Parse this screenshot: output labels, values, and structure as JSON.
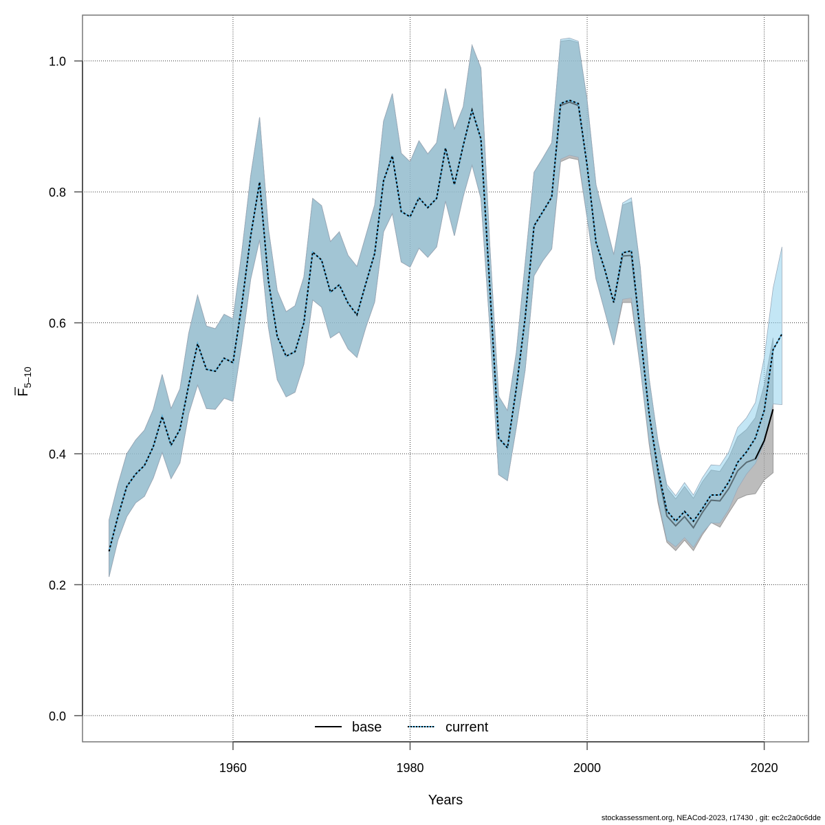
{
  "chart_data": {
    "type": "line",
    "title": "",
    "xlabel": "Years",
    "ylabel_main": "F",
    "ylabel_subscript": "5–10",
    "xlim": [
      1943,
      2025
    ],
    "ylim": [
      -0.04,
      1.07
    ],
    "x_ticks": [
      1960,
      1980,
      2000,
      2020
    ],
    "x_tick_labels": [
      "1960",
      "1980",
      "2000",
      "2020"
    ],
    "y_ticks": [
      0.0,
      0.2,
      0.4,
      0.6,
      0.8,
      1.0
    ],
    "y_tick_labels": [
      "0.0",
      "0.2",
      "0.4",
      "0.6",
      "0.8",
      "1.0"
    ],
    "grid": true,
    "legend_position": "bottom-center",
    "series": [
      {
        "name": "base",
        "line_style": "solid",
        "line_color": "#000000",
        "band_color": "#a0a0a0",
        "years": [
          1946,
          1947,
          1948,
          1949,
          1950,
          1951,
          1952,
          1953,
          1954,
          1955,
          1956,
          1957,
          1958,
          1959,
          1960,
          1961,
          1962,
          1963,
          1964,
          1965,
          1966,
          1967,
          1968,
          1969,
          1970,
          1971,
          1972,
          1973,
          1974,
          1975,
          1976,
          1977,
          1978,
          1979,
          1980,
          1981,
          1982,
          1983,
          1984,
          1985,
          1986,
          1987,
          1988,
          1989,
          1990,
          1991,
          1992,
          1993,
          1994,
          1995,
          1996,
          1997,
          1998,
          1999,
          2000,
          2001,
          2002,
          2003,
          2004,
          2005,
          2006,
          2007,
          2008,
          2009,
          2010,
          2011,
          2012,
          2013,
          2014,
          2015,
          2016,
          2017,
          2018,
          2019,
          2020,
          2021
        ],
        "values": [
          0.251,
          0.304,
          0.35,
          0.369,
          0.382,
          0.411,
          0.457,
          0.413,
          0.437,
          0.505,
          0.568,
          0.529,
          0.526,
          0.546,
          0.539,
          0.628,
          0.733,
          0.815,
          0.664,
          0.579,
          0.549,
          0.556,
          0.6,
          0.708,
          0.696,
          0.647,
          0.658,
          0.63,
          0.612,
          0.66,
          0.706,
          0.817,
          0.855,
          0.77,
          0.762,
          0.791,
          0.776,
          0.79,
          0.867,
          0.811,
          0.871,
          0.925,
          0.881,
          0.655,
          0.424,
          0.409,
          0.5,
          0.608,
          0.748,
          0.77,
          0.792,
          0.932,
          0.937,
          0.932,
          0.84,
          0.723,
          0.681,
          0.631,
          0.702,
          0.703,
          0.585,
          0.461,
          0.372,
          0.305,
          0.29,
          0.304,
          0.287,
          0.31,
          0.329,
          0.328,
          0.347,
          0.374,
          0.387,
          0.392,
          0.42,
          0.468
        ],
        "lower": [
          0.212,
          0.268,
          0.304,
          0.325,
          0.335,
          0.363,
          0.402,
          0.362,
          0.386,
          0.461,
          0.505,
          0.469,
          0.468,
          0.485,
          0.48,
          0.568,
          0.667,
          0.727,
          0.593,
          0.513,
          0.487,
          0.494,
          0.537,
          0.635,
          0.624,
          0.577,
          0.586,
          0.56,
          0.547,
          0.593,
          0.632,
          0.739,
          0.767,
          0.693,
          0.685,
          0.714,
          0.7,
          0.716,
          0.786,
          0.733,
          0.793,
          0.841,
          0.79,
          0.593,
          0.368,
          0.359,
          0.44,
          0.528,
          0.672,
          0.695,
          0.713,
          0.846,
          0.852,
          0.849,
          0.76,
          0.667,
          0.617,
          0.566,
          0.631,
          0.631,
          0.532,
          0.415,
          0.325,
          0.265,
          0.252,
          0.268,
          0.252,
          0.276,
          0.295,
          0.288,
          0.31,
          0.331,
          0.337,
          0.339,
          0.36,
          0.371
        ],
        "upper": [
          0.299,
          0.353,
          0.4,
          0.421,
          0.436,
          0.468,
          0.521,
          0.469,
          0.499,
          0.584,
          0.642,
          0.595,
          0.591,
          0.613,
          0.606,
          0.709,
          0.825,
          0.914,
          0.744,
          0.649,
          0.617,
          0.626,
          0.67,
          0.79,
          0.779,
          0.724,
          0.739,
          0.703,
          0.686,
          0.733,
          0.78,
          0.908,
          0.95,
          0.859,
          0.846,
          0.878,
          0.858,
          0.875,
          0.958,
          0.896,
          0.93,
          1.024,
          0.989,
          0.72,
          0.488,
          0.466,
          0.555,
          0.692,
          0.83,
          0.852,
          0.875,
          1.03,
          1.032,
          1.028,
          0.94,
          0.811,
          0.757,
          0.704,
          0.78,
          0.785,
          0.685,
          0.515,
          0.418,
          0.348,
          0.331,
          0.35,
          0.332,
          0.357,
          0.375,
          0.373,
          0.394,
          0.426,
          0.437,
          0.455,
          0.505,
          0.577
        ]
      },
      {
        "name": "current",
        "line_style": "dotted",
        "line_color": "#000000",
        "line_color_under": "#5bb8e6",
        "band_color": "#87ceeb",
        "years": [
          1946,
          1947,
          1948,
          1949,
          1950,
          1951,
          1952,
          1953,
          1954,
          1955,
          1956,
          1957,
          1958,
          1959,
          1960,
          1961,
          1962,
          1963,
          1964,
          1965,
          1966,
          1967,
          1968,
          1969,
          1970,
          1971,
          1972,
          1973,
          1974,
          1975,
          1976,
          1977,
          1978,
          1979,
          1980,
          1981,
          1982,
          1983,
          1984,
          1985,
          1986,
          1987,
          1988,
          1989,
          1990,
          1991,
          1992,
          1993,
          1994,
          1995,
          1996,
          1997,
          1998,
          1999,
          2000,
          2001,
          2002,
          2003,
          2004,
          2005,
          2006,
          2007,
          2008,
          2009,
          2010,
          2011,
          2012,
          2013,
          2014,
          2015,
          2016,
          2017,
          2018,
          2019,
          2020,
          2021,
          2022
        ],
        "values": [
          0.251,
          0.304,
          0.35,
          0.369,
          0.382,
          0.411,
          0.457,
          0.413,
          0.437,
          0.505,
          0.568,
          0.529,
          0.526,
          0.546,
          0.539,
          0.628,
          0.733,
          0.815,
          0.664,
          0.579,
          0.549,
          0.556,
          0.6,
          0.708,
          0.696,
          0.647,
          0.658,
          0.63,
          0.612,
          0.66,
          0.706,
          0.817,
          0.855,
          0.77,
          0.762,
          0.791,
          0.776,
          0.79,
          0.867,
          0.811,
          0.871,
          0.925,
          0.881,
          0.655,
          0.424,
          0.409,
          0.5,
          0.608,
          0.748,
          0.77,
          0.792,
          0.935,
          0.94,
          0.935,
          0.84,
          0.723,
          0.681,
          0.631,
          0.707,
          0.71,
          0.585,
          0.461,
          0.376,
          0.313,
          0.297,
          0.312,
          0.297,
          0.316,
          0.337,
          0.337,
          0.357,
          0.387,
          0.403,
          0.424,
          0.466,
          0.559,
          0.583
        ],
        "lower": [
          0.212,
          0.268,
          0.304,
          0.325,
          0.335,
          0.363,
          0.402,
          0.362,
          0.386,
          0.461,
          0.505,
          0.469,
          0.468,
          0.485,
          0.48,
          0.568,
          0.667,
          0.727,
          0.593,
          0.513,
          0.487,
          0.494,
          0.537,
          0.635,
          0.624,
          0.577,
          0.586,
          0.56,
          0.547,
          0.593,
          0.632,
          0.739,
          0.767,
          0.693,
          0.685,
          0.714,
          0.7,
          0.716,
          0.786,
          0.733,
          0.793,
          0.841,
          0.79,
          0.593,
          0.368,
          0.359,
          0.44,
          0.528,
          0.672,
          0.695,
          0.713,
          0.85,
          0.856,
          0.853,
          0.76,
          0.667,
          0.617,
          0.566,
          0.636,
          0.638,
          0.532,
          0.419,
          0.33,
          0.268,
          0.258,
          0.272,
          0.257,
          0.279,
          0.294,
          0.294,
          0.315,
          0.347,
          0.369,
          0.385,
          0.416,
          0.476,
          0.475
        ],
        "upper": [
          0.299,
          0.353,
          0.4,
          0.421,
          0.436,
          0.468,
          0.521,
          0.469,
          0.499,
          0.584,
          0.642,
          0.595,
          0.591,
          0.613,
          0.606,
          0.709,
          0.825,
          0.914,
          0.744,
          0.649,
          0.617,
          0.626,
          0.67,
          0.79,
          0.779,
          0.724,
          0.739,
          0.703,
          0.686,
          0.733,
          0.78,
          0.908,
          0.95,
          0.859,
          0.846,
          0.878,
          0.858,
          0.875,
          0.958,
          0.896,
          0.93,
          1.024,
          0.989,
          0.72,
          0.488,
          0.466,
          0.555,
          0.692,
          0.83,
          0.852,
          0.875,
          1.033,
          1.035,
          1.03,
          0.94,
          0.811,
          0.757,
          0.704,
          0.783,
          0.791,
          0.685,
          0.515,
          0.42,
          0.353,
          0.336,
          0.356,
          0.337,
          0.363,
          0.383,
          0.382,
          0.403,
          0.44,
          0.455,
          0.478,
          0.547,
          0.653,
          0.716
        ]
      }
    ],
    "legend": [
      {
        "label": "base",
        "line_style": "solid"
      },
      {
        "label": "current",
        "line_style": "dotted"
      }
    ]
  },
  "footer": {
    "text": "stockassessment.org, NEACod-2023, r17430 , git: ec2c2a0c6dde"
  }
}
